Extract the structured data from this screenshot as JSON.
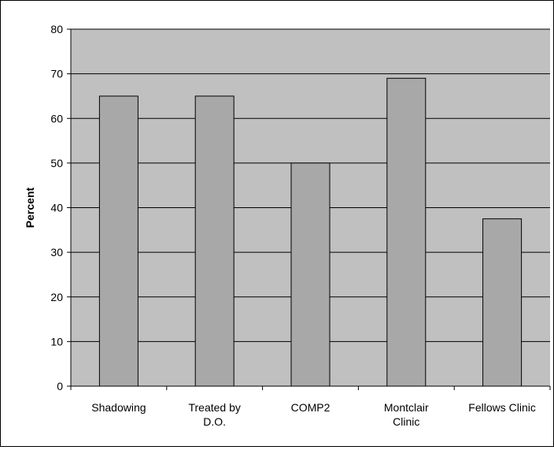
{
  "chart_data": {
    "type": "bar",
    "title": "",
    "xlabel": "",
    "ylabel": "Percent",
    "categories": [
      [
        "Shadowing"
      ],
      [
        "Treated by",
        "D.O."
      ],
      [
        "COMP2"
      ],
      [
        "Montclair",
        "Clinic"
      ],
      [
        "Fellows Clinic"
      ]
    ],
    "values": [
      65,
      65,
      50,
      69,
      37.5
    ],
    "ylim": [
      0,
      80
    ],
    "yticks": [
      0,
      10,
      20,
      30,
      40,
      50,
      60,
      70,
      80
    ],
    "grid": true,
    "legend": "none"
  },
  "colors": {
    "plot_bg": "#c0c0c0",
    "bar_fill": "#a8a8a8",
    "bar_stroke": "#000000",
    "grid": "#000000"
  }
}
